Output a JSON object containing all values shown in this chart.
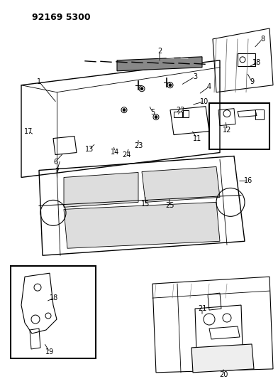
{
  "title": "92169 5300",
  "background_color": "#ffffff",
  "fig_width": 3.92,
  "fig_height": 5.33,
  "dpi": 100
}
